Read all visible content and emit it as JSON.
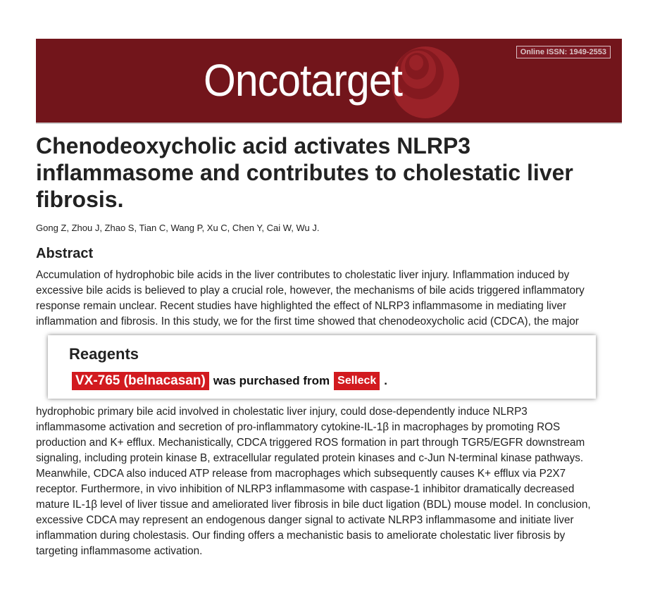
{
  "banner": {
    "logo": "Oncotarget",
    "issn": "Online ISSN: 1949-2553",
    "color": "#72151b"
  },
  "article": {
    "title": "Chenodeoxycholic acid activates NLRP3 inflammasome and contributes to cholestatic liver fibrosis.",
    "authors": "Gong Z, Zhou J, Zhao S, Tian C, Wang P, Xu C, Chen Y, Cai W, Wu J.",
    "abstract_heading": "Abstract",
    "abstract_lines": [
      "Accumulation of hydrophobic bile acids in the liver contributes to cholestatic liver injury. Inflammation induced by",
      "excessive bile acids is believed to play a crucial role, however, the mechanisms of bile acids triggered inflammatory",
      "response remain unclear. Recent studies have highlighted the effect of NLRP3 inflammasome in mediating liver",
      "inflammation and fibrosis. In this study, we for the first time showed that chenodeoxycholic acid (CDCA), the major",
      "hydrophobic primary bile acid involved in cholestatic liver injury, could dose-dependently induce NLRP3",
      "inflammasome activation and secretion of pro-inflammatory cytokine-IL-1β in macrophages by promoting ROS",
      "production and K+ efflux. Mechanistically, CDCA triggered ROS formation in part through TGR5/EGFR downstream",
      "signaling, including protein kinase B, extracellular regulated protein kinases and c-Jun N-terminal kinase pathways.",
      "Meanwhile, CDCA also induced ATP release from macrophages which subsequently causes K+ efflux via P2X7",
      "receptor. Furthermore, in vivo inhibition of NLRP3 inflammasome with caspase-1 inhibitor dramatically decreased",
      "mature IL-1β level of liver tissue and ameliorated liver fibrosis in bile duct ligation (BDL) mouse model. In conclusion,",
      "excessive CDCA may represent an endogenous danger signal to activate NLRP3 inflammasome and initiate liver",
      "inflammation during cholestasis. Our finding offers a mechanistic basis to ameliorate cholestatic liver fibrosis by",
      "targeting inflammasome activation."
    ]
  },
  "reagents": {
    "heading": "Reagents",
    "compound": "VX-765 (belnacasan)",
    "middle": "was purchased from",
    "supplier": "Selleck",
    "end": ".",
    "accent": "#d21a1f"
  }
}
